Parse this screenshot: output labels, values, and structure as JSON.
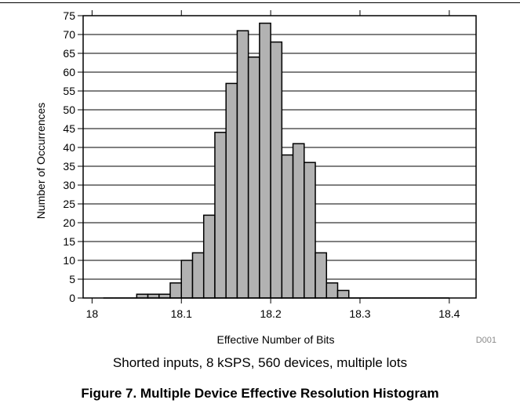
{
  "chart_data": {
    "type": "bar",
    "bin_width": 0.0125,
    "bin_starts": [
      18.0125,
      18.025,
      18.0375,
      18.05,
      18.0625,
      18.075,
      18.0875,
      18.1,
      18.1125,
      18.125,
      18.1375,
      18.15,
      18.1625,
      18.175,
      18.1875,
      18.2,
      18.2125,
      18.225,
      18.2375,
      18.25,
      18.2625,
      18.275,
      18.2875,
      18.3,
      18.3125,
      18.325,
      18.3375,
      18.35,
      18.3625,
      18.375,
      18.3875
    ],
    "values": [
      0,
      0,
      0,
      1,
      1,
      1,
      4,
      10,
      12,
      22,
      44,
      57,
      71,
      64,
      73,
      68,
      38,
      41,
      36,
      12,
      4,
      2,
      0,
      0,
      0,
      0,
      0,
      0,
      0,
      0,
      0
    ],
    "xlim": [
      17.99,
      18.43
    ],
    "ylim": [
      0,
      75
    ],
    "x_ticks": [
      18,
      18.1,
      18.2,
      18.3,
      18.4
    ],
    "x_tick_labels": [
      "18",
      "18.1",
      "18.2",
      "18.3",
      "18.4"
    ],
    "y_ticks": [
      0,
      5,
      10,
      15,
      20,
      25,
      30,
      35,
      40,
      45,
      50,
      55,
      60,
      65,
      70,
      75
    ],
    "y_tick_labels": [
      "0",
      "5",
      "10",
      "15",
      "20",
      "25",
      "30",
      "35",
      "40",
      "45",
      "50",
      "55",
      "60",
      "65",
      "70",
      "75"
    ],
    "xlabel": "Effective Number of Bits",
    "ylabel": "Number of Occurrences",
    "grid": "horizontal",
    "bar_color": "#b2b2b2",
    "code": "D001",
    "subtitle": "Shorted inputs, 8 kSPS, 560 devices, multiple lots",
    "title": "Figure 7. Multiple Device Effective Resolution Histogram"
  }
}
